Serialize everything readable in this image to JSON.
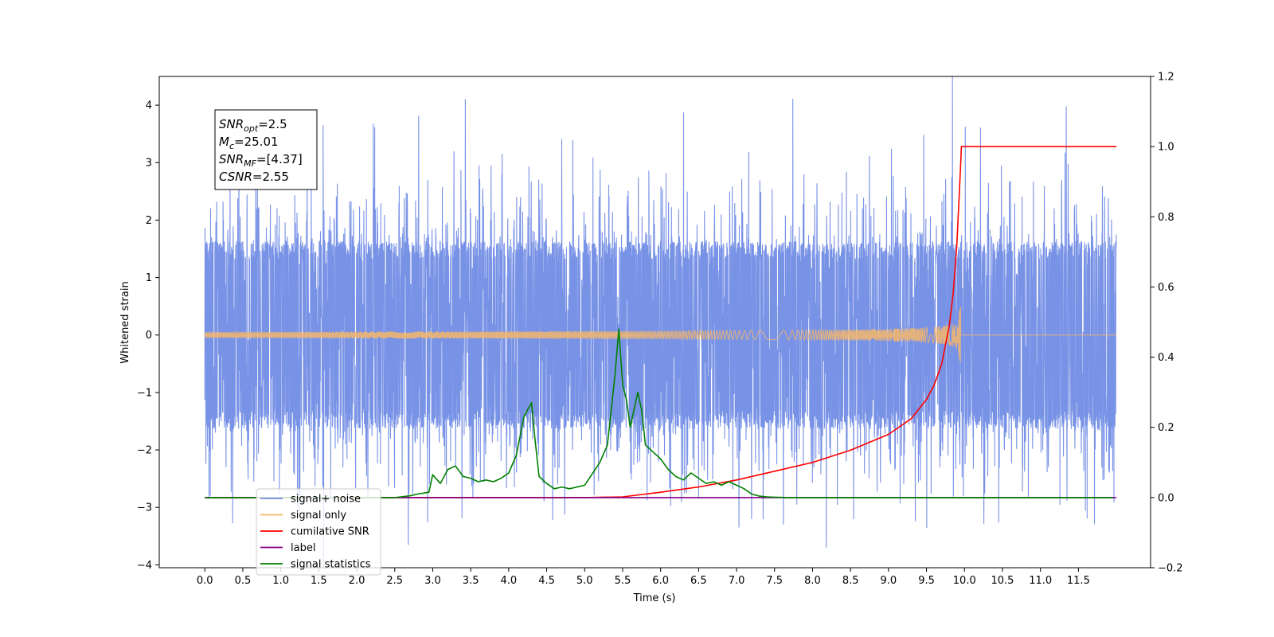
{
  "chart_data": {
    "type": "line",
    "xlabel": "Time (s)",
    "ylabel": "Whitened strain",
    "ylabel_right": "",
    "xlim": [
      -0.6,
      12.45
    ],
    "ylim": [
      -4.05,
      4.5
    ],
    "ylim_right": [
      -0.2,
      1.2
    ],
    "x_ticks": [
      0.0,
      0.5,
      1.0,
      1.5,
      2.0,
      2.5,
      3.0,
      3.5,
      4.0,
      4.5,
      5.0,
      5.5,
      6.0,
      6.5,
      7.0,
      7.5,
      8.0,
      8.5,
      9.0,
      9.5,
      10.0,
      10.5,
      11.0,
      11.5
    ],
    "x_tick_labels": [
      "0.0",
      "0.5",
      "1.0",
      "1.5",
      "2.0",
      "2.5",
      "3.0",
      "3.5",
      "4.0",
      "4.5",
      "5.0",
      "5.5",
      "6.0",
      "6.5",
      "7.0",
      "7.5",
      "8.0",
      "8.5",
      "9.0",
      "9.5",
      "10.0",
      "10.5",
      "11.0",
      "11.5"
    ],
    "y_ticks": [
      -4,
      -3,
      -2,
      -1,
      0,
      1,
      2,
      3,
      4
    ],
    "y_tick_labels": [
      "−4",
      "−3",
      "−2",
      "−1",
      "0",
      "1",
      "2",
      "3",
      "4"
    ],
    "y_ticks_right": [
      -0.2,
      0.0,
      0.2,
      0.4,
      0.6,
      0.8,
      1.0,
      1.2
    ],
    "y_tick_labels_right": [
      "−0.2",
      "0.0",
      "0.2",
      "0.4",
      "0.6",
      "0.8",
      "1.0",
      "1.2"
    ],
    "grid": false,
    "legend_position": "lower-left",
    "annotation": {
      "lines": [
        {
          "main": "SNR",
          "sub": "opt",
          "rest": "=2.5"
        },
        {
          "main": "M",
          "sub": "c",
          "rest": "=25.01"
        },
        {
          "main": "SNR",
          "sub": "MF",
          "rest": "=[4.37]"
        },
        {
          "main": "CSNR",
          "sub": "",
          "rest": "=2.55"
        }
      ]
    },
    "noise_summary": {
      "x_range": [
        0.0,
        12.0
      ],
      "typical_band": [
        -1.55,
        1.55
      ],
      "peaks": [
        {
          "x": 3.43,
          "y": 4.1
        },
        {
          "x": 11.34,
          "y": 3.97
        },
        {
          "x": 2.68,
          "y": -3.65
        },
        {
          "x": 8.54,
          "y": -3.2
        },
        {
          "x": 7.35,
          "y": -3.2
        }
      ]
    },
    "series": [
      {
        "name": "signal+ noise",
        "axis": "left",
        "color": "#7892e6",
        "style": "noise"
      },
      {
        "name": "signal only",
        "axis": "left",
        "color": "#f5b66b",
        "style": "chirp",
        "x_range": [
          0.0,
          12.0
        ],
        "merger_time": 9.95,
        "peak_amplitude": 0.5
      },
      {
        "name": "cumilative SNR",
        "axis": "right",
        "color": "#ff0000",
        "x": [
          0.0,
          5.0,
          5.5,
          6.0,
          6.5,
          7.0,
          7.5,
          8.0,
          8.5,
          9.0,
          9.3,
          9.5,
          9.6,
          9.7,
          9.8,
          9.85,
          9.9,
          9.95,
          9.96,
          12.0
        ],
        "y": [
          0.0,
          0.0,
          0.002,
          0.015,
          0.03,
          0.05,
          0.075,
          0.1,
          0.135,
          0.18,
          0.225,
          0.28,
          0.32,
          0.38,
          0.49,
          0.58,
          0.72,
          0.95,
          1.0,
          1.0
        ]
      },
      {
        "name": "label",
        "axis": "right",
        "color": "#800080",
        "x": [
          0.0,
          12.0
        ],
        "y": [
          0.0,
          0.0
        ]
      },
      {
        "name": "signal statistics",
        "axis": "right",
        "color": "#008000",
        "x": [
          0.0,
          1.0,
          2.0,
          2.5,
          2.7,
          2.8,
          2.95,
          3.0,
          3.1,
          3.2,
          3.3,
          3.4,
          3.5,
          3.6,
          3.7,
          3.8,
          3.9,
          4.0,
          4.1,
          4.2,
          4.3,
          4.35,
          4.4,
          4.5,
          4.6,
          4.7,
          4.8,
          5.0,
          5.2,
          5.3,
          5.4,
          5.45,
          5.5,
          5.55,
          5.6,
          5.7,
          5.75,
          5.8,
          5.9,
          6.0,
          6.1,
          6.2,
          6.3,
          6.4,
          6.5,
          6.6,
          6.7,
          6.8,
          6.9,
          7.0,
          7.1,
          7.2,
          7.3,
          7.4,
          7.5,
          7.7,
          8.0,
          9.0,
          10.0,
          11.0,
          11.95
        ],
        "y": [
          0.0,
          0.0,
          0.0,
          0.0,
          0.005,
          0.01,
          0.015,
          0.065,
          0.04,
          0.08,
          0.09,
          0.06,
          0.055,
          0.045,
          0.05,
          0.045,
          0.055,
          0.07,
          0.12,
          0.23,
          0.27,
          0.16,
          0.06,
          0.04,
          0.025,
          0.03,
          0.025,
          0.035,
          0.1,
          0.15,
          0.35,
          0.48,
          0.32,
          0.28,
          0.2,
          0.3,
          0.25,
          0.15,
          0.13,
          0.11,
          0.08,
          0.06,
          0.05,
          0.07,
          0.055,
          0.04,
          0.045,
          0.035,
          0.045,
          0.035,
          0.025,
          0.01,
          0.004,
          0.002,
          0.001,
          0.0,
          0.0,
          0.0,
          0.0,
          0.0,
          0.0
        ]
      }
    ]
  }
}
